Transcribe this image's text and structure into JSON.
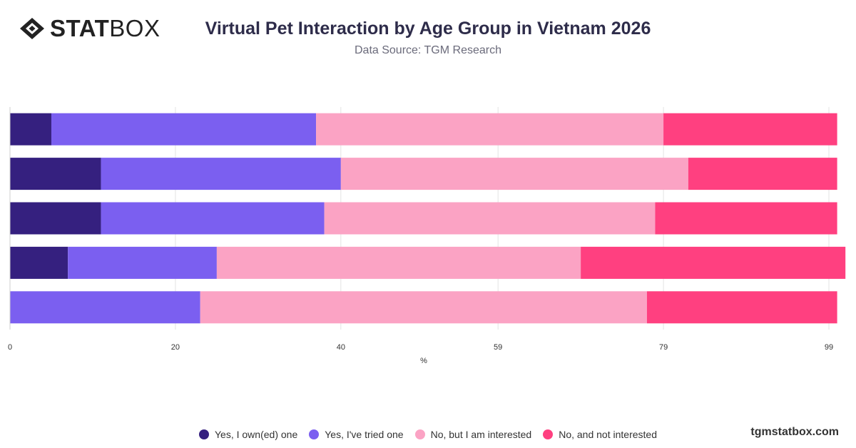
{
  "header": {
    "logo_bold": "STAT",
    "logo_light": "BOX",
    "title": "Virtual Pet Interaction by Age Group in Vietnam 2026",
    "subtitle": "Data Source: TGM Research"
  },
  "footer": {
    "site": "tgmstatbox.com"
  },
  "colors": {
    "owned": "#35207f",
    "tried": "#7b5ff0",
    "interested": "#fba3c4",
    "not_interested": "#ff4080",
    "grid": "#e3e3e3",
    "axis_text": "#333333"
  },
  "chart_data": {
    "type": "bar",
    "orientation": "horizontal",
    "stacked": true,
    "title": "Virtual Pet Interaction by Age Group in Vietnam 2026",
    "subtitle": "Data Source: TGM Research",
    "xlabel": "%",
    "ylabel": "",
    "xlim": [
      0,
      99
    ],
    "x_ticks": [
      0,
      20,
      40,
      59,
      79,
      99
    ],
    "categories": [
      "",
      "",
      "",
      "",
      ""
    ],
    "series": [
      {
        "name": "Yes, I own(ed) one",
        "color": "#35207f",
        "values": [
          5,
          11,
          11,
          7,
          0
        ]
      },
      {
        "name": "Yes, I've tried one",
        "color": "#7b5ff0",
        "values": [
          32,
          29,
          27,
          18,
          23
        ]
      },
      {
        "name": "No, but I am interested",
        "color": "#fba3c4",
        "values": [
          42,
          42,
          40,
          44,
          54
        ]
      },
      {
        "name": "No, and not interested",
        "color": "#ff4080",
        "values": [
          21,
          18,
          22,
          32,
          23
        ]
      }
    ],
    "legend": "bottom-center",
    "grid": true
  }
}
